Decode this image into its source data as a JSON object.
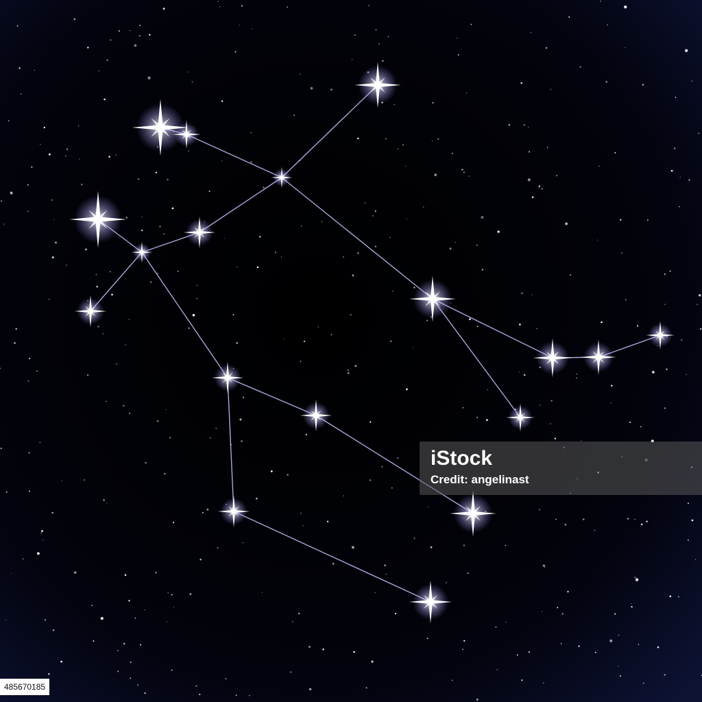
{
  "image": {
    "description_kind": "constellation-illustration",
    "colors": {
      "sky_top": "#000000",
      "sky_edge": "#0d1233",
      "line": "#c9c6ff",
      "star": "#ffffff",
      "glow": "#b8b4ff"
    }
  },
  "watermark": {
    "logo_text": "iStock",
    "credit_label": "Credit:",
    "credit_name": "angelinast"
  },
  "stock_id": "485670185"
}
